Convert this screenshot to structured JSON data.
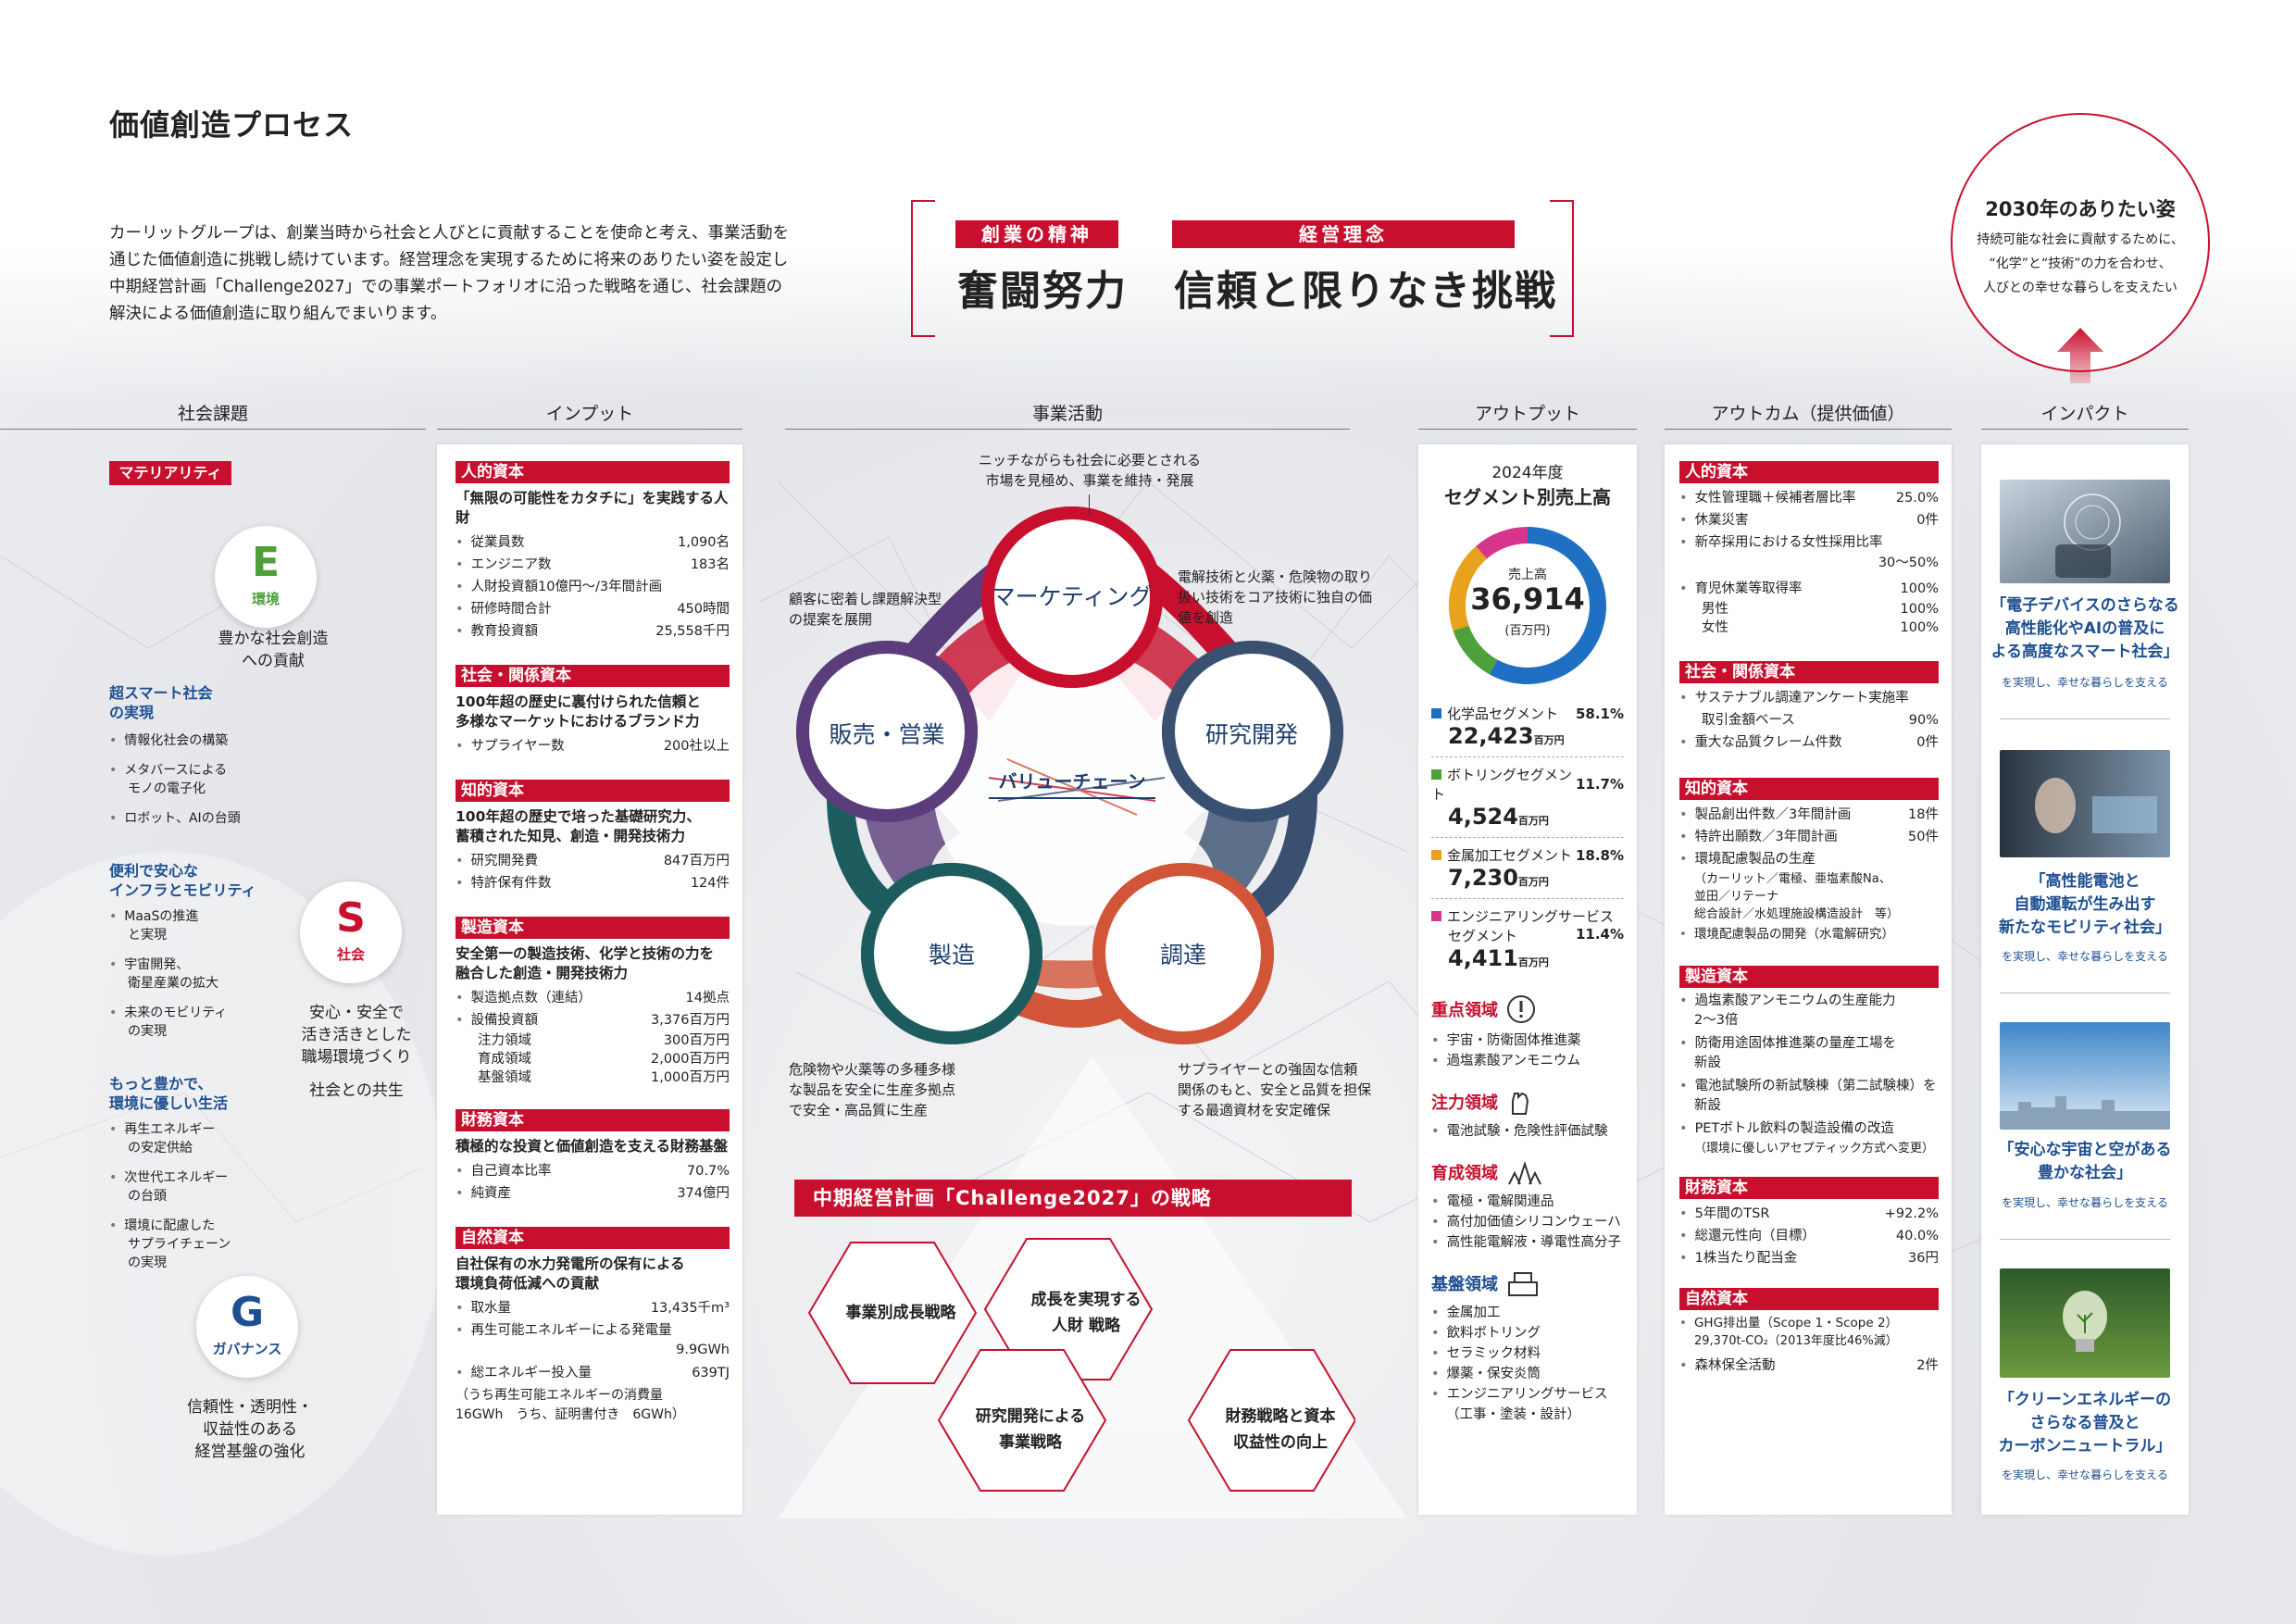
{
  "page": {
    "title": "価値創造プロセス",
    "intro": [
      "カーリットグループは、創業当時から社会と人びとに貢献することを使命と考え、事業活動を",
      "通じた価値創造に挑戦し続けています。経営理念を実現するために将来のありたい姿を設定し",
      "中期経営計画「Challenge2027」での事業ポートフォリオに沿った戦略を通じ、社会課題の",
      "解決による価値創造に取り組んでまいります。"
    ]
  },
  "motto": {
    "spirit_label": "創業の精神",
    "spirit_text": "奮闘努力",
    "philosophy_label": "経営理念",
    "philosophy_text": "信頼と限りなき挑戦"
  },
  "vision": {
    "title": "2030年のありたい姿",
    "lines": [
      "持続可能な社会に貢献するために、",
      "“化学”と“技術”の力を合わせ、",
      "人びとの幸せな暮らしを支えたい"
    ]
  },
  "columns": {
    "social": "社会課題",
    "input": "インプット",
    "business": "事業活動",
    "output": "アウトプット",
    "outcome": "アウトカム（提供価値）",
    "impact": "インパクト"
  },
  "materiality": {
    "label": "マテリアリティ",
    "e": {
      "letter": "E",
      "name": "環境",
      "desc": [
        "豊かな社会創造",
        "への貢献"
      ]
    },
    "s": {
      "letter": "S",
      "name": "社会",
      "desc": [
        "安心・安全で",
        "活き活きとした",
        "職場環境づくり"
      ],
      "desc2": "社会との共生"
    },
    "g": {
      "letter": "G",
      "name": "ガバナンス",
      "desc": [
        "信頼性・透明性・",
        "収益性のある",
        "経営基盤の強化"
      ]
    },
    "groups": [
      {
        "title": [
          "超スマート社会",
          "の実現"
        ],
        "items": [
          [
            "情報化社会の構築"
          ],
          [
            "メタバースによる",
            "モノの電子化"
          ],
          [
            "ロボット、AIの台頭"
          ]
        ]
      },
      {
        "title": [
          "便利で安心な",
          "インフラとモビリティ"
        ],
        "items": [
          [
            "MaaSの推進",
            "と実現"
          ],
          [
            "宇宙開発、",
            "衛星産業の拡大"
          ],
          [
            "未来のモビリティ",
            "の実現"
          ]
        ]
      },
      {
        "title": [
          "もっと豊かで、",
          "環境に優しい生活"
        ],
        "items": [
          [
            "再生エネルギー",
            "の安定供給"
          ],
          [
            "次世代エネルギー",
            "の台頭"
          ],
          [
            "環境に配慮した",
            "サプライチェーン",
            "の実現"
          ]
        ]
      }
    ]
  },
  "input": {
    "human": {
      "head": "人的資本",
      "sub": "「無限の可能性をカタチに」を実践する人財",
      "rows": [
        [
          "従業員数",
          "1,090名"
        ],
        [
          "エンジニア数",
          "183名"
        ],
        [
          "人財投資額10億円～/3年間計画",
          ""
        ],
        [
          "研修時間合計",
          "450時間"
        ],
        [
          "教育投資額",
          "25,558千円"
        ]
      ]
    },
    "social": {
      "head": "社会・関係資本",
      "sub": [
        "100年超の歴史に裏付けられた信頼と",
        "多様なマーケットにおけるブランド力"
      ],
      "rows": [
        [
          "サプライヤー数",
          "200社以上"
        ]
      ]
    },
    "intellectual": {
      "head": "知的資本",
      "sub": [
        "100年超の歴史で培った基礎研究力、",
        "蓄積された知見、創造・開発技術力"
      ],
      "rows": [
        [
          "研究開発費",
          "847百万円"
        ],
        [
          "特許保有件数",
          "124件"
        ]
      ]
    },
    "manufactured": {
      "head": "製造資本",
      "sub": [
        "安全第一の製造技術、化学と技術の力を",
        "融合した創造・開発技術力"
      ],
      "rows": [
        [
          "製造拠点数（連結）",
          "14拠点"
        ],
        [
          "設備投資額",
          "3,376百万円"
        ]
      ],
      "subrows": [
        [
          "注力領域",
          "300百万円"
        ],
        [
          "育成領域",
          "2,000百万円"
        ],
        [
          "基盤領域",
          "1,000百万円"
        ]
      ]
    },
    "financial": {
      "head": "財務資本",
      "sub": "積極的な投資と価値創造を支える財務基盤",
      "rows": [
        [
          "自己資本比率",
          "70.7%"
        ],
        [
          "純資産",
          "374億円"
        ]
      ]
    },
    "natural": {
      "head": "自然資本",
      "sub": [
        "自社保有の水力発電所の保有による",
        "環境負荷低減への貢献"
      ],
      "rows": [
        [
          "取水量",
          "13,435千m³"
        ],
        [
          "再生可能エネルギーによる発電量",
          ""
        ]
      ],
      "row2_val": "9.9GWh",
      "rows2": [
        [
          "総エネルギー投入量",
          "639TJ"
        ]
      ],
      "note": [
        "（うち再生可能エネルギーの消費量",
        "16GWh　うち、証明書付き　6GWh）"
      ]
    }
  },
  "value_chain": {
    "center": "バリューチェーン",
    "nodes": {
      "marketing": "マーケティング",
      "rnd": "研究開発",
      "procurement": "調達",
      "manufacturing": "製造",
      "sales": "販売・営業"
    },
    "callouts": {
      "marketing": [
        "ニッチながらも社会に必要とされる",
        "市場を見極め、事業を維持・発展"
      ],
      "rnd": [
        "電解技術と火薬・危険物の取り",
        "扱い技術をコア技術に独自の価",
        "値を創造"
      ],
      "procurement": [
        "サプライヤーとの強固な信頼",
        "関係のもと、安全と品質を担保",
        "する最適資材を安定確保"
      ],
      "manufacturing": [
        "危険物や火薬等の多種多様",
        "な製品を安全に生産多拠点",
        "で安全・高品質に生産"
      ],
      "sales": [
        "顧客に密着し課題解決型",
        "の提案を展開"
      ]
    },
    "colors": {
      "marketing": "#c8102e",
      "rnd": "#3a5070",
      "procurement": "#d2553a",
      "manufacturing": "#1d5c5e",
      "sales": "#5a3d7a"
    }
  },
  "strategy": {
    "title": "中期経営計画「Challenge2027」の戦略",
    "hex": [
      [
        "事業別成長戦略"
      ],
      [
        "成長を実現する",
        "人財 戦略"
      ],
      [
        "研究開発による",
        "事業戦略"
      ],
      [
        "財務戦略と資本",
        "収益性の向上"
      ]
    ]
  },
  "output": {
    "year": "2024年度",
    "title": "セグメント別売上高",
    "donut_label": "売上高",
    "donut_value": "36,914",
    "donut_unit": "(百万円)",
    "unit": "百万円",
    "segments": [
      {
        "name": "化学品セグメント",
        "pct": "58.1%",
        "value": "22,423",
        "color": "#1f6fc2"
      },
      {
        "name": "ボトリングセグメント",
        "pct": "11.7%",
        "value": "4,524",
        "color": "#4ea13a"
      },
      {
        "name": "金属加工セグメント",
        "pct": "18.8%",
        "value": "7,230",
        "color": "#e8a21b"
      },
      {
        "name": "エンジニアリングサービスセグメント",
        "name_lines": [
          "エンジニアリングサービス",
          "セグメント"
        ],
        "pct": "11.4%",
        "value": "4,411",
        "color": "#d6358b"
      }
    ],
    "focus": [
      {
        "head": "重点領域",
        "icon": "exclamation-icon",
        "items": [
          [
            "宇宙・防衛固体推進薬"
          ],
          [
            "過塩素酸アンモニウム"
          ]
        ]
      },
      {
        "head": "注力領域",
        "icon": "fist-icon",
        "items": [
          [
            "電池試験・危険性評価試験"
          ]
        ]
      },
      {
        "head": "育成領域",
        "icon": "sprout-icon",
        "items": [
          [
            "電極・電解関連品"
          ],
          [
            "高付加価値シリコンウェーハ"
          ],
          [
            "高性能電解液・導電性高分子"
          ]
        ]
      },
      {
        "head": "基盤領域",
        "icon": "boxes-icon",
        "items": [
          [
            "金属加工"
          ],
          [
            "飲料ボトリング"
          ],
          [
            "セラミック材料"
          ],
          [
            "爆薬・保安炎筒"
          ],
          [
            "エンジニアリングサービス",
            "（工事・塗装・設計）"
          ]
        ]
      }
    ]
  },
  "outcome": {
    "human": {
      "head": "人的資本",
      "rows": [
        [
          "女性管理職＋候補者層比率",
          "25.0%"
        ],
        [
          "休業災害",
          "0件"
        ],
        [
          "新卒採用における女性採用比率",
          ""
        ]
      ],
      "range": "30～50%",
      "rows2": [
        [
          "育児休業等取得率",
          "100%"
        ]
      ],
      "subrows": [
        [
          "男性",
          "100%"
        ],
        [
          "女性",
          "100%"
        ]
      ]
    },
    "social": {
      "head": "社会・関係資本",
      "rows": [
        [
          "サステナブル調達アンケート実施率",
          ""
        ]
      ],
      "subrows": [
        [
          "取引金額ベース",
          "90%"
        ]
      ],
      "rows2": [
        [
          "重大な品質クレーム件数",
          "0件"
        ]
      ]
    },
    "intellectual": {
      "head": "知的資本",
      "rows": [
        [
          "製品創出件数／3年間計画",
          "18件"
        ],
        [
          "特許出願数／3年間計画",
          "50件"
        ],
        [
          "環境配慮製品の生産",
          ""
        ]
      ],
      "note": [
        "（カーリット／電極、亜塩素酸Na、",
        "並田／リテーナ",
        "総合設計／水処理施設構造設計　等）"
      ],
      "rows2": [
        [
          "環境配慮製品の開発（水電解研究）",
          ""
        ]
      ]
    },
    "manufactured": {
      "head": "製造資本",
      "items": [
        [
          "過塩素酸アンモニウムの生産能力",
          "2～3倍"
        ],
        [
          "防衛用途固体推進薬の量産工場を",
          "新設"
        ],
        [
          "電池試験所の新試験棟（第二試験棟）を",
          "新設"
        ],
        [
          "PETボトル飲料の製造設備の改造",
          "（環境に優しいアセプティック方式へ変更）"
        ]
      ]
    },
    "financial": {
      "head": "財務資本",
      "rows": [
        [
          "5年間のTSR",
          "+92.2%"
        ],
        [
          "総還元性向（目標）",
          "40.0%"
        ],
        [
          "1株当たり配当金",
          "36円"
        ]
      ]
    },
    "natural": {
      "head": "自然資本",
      "items": [
        [
          "GHG排出量（Scope 1・Scope 2）",
          "29,370t-CO₂（2013年度比46%減）"
        ]
      ],
      "rows": [
        [
          "森林保全活動",
          "2件"
        ]
      ]
    }
  },
  "impact": [
    {
      "caption": [
        "「電子デバイスのさらなる",
        "高性能化やAIの普及に",
        "よる高度なスマート社会」"
      ],
      "sub": "を実現し、幸せな暮らしを支える",
      "icon": "smart-society-photo"
    },
    {
      "caption": [
        "「高性能電池と",
        "自動運転が生み出す",
        "新たなモビリティ社会」"
      ],
      "sub": "を実現し、幸せな暮らしを支える",
      "icon": "autonomous-car-photo"
    },
    {
      "caption": [
        "「安心な宇宙と空がある",
        "豊かな社会」"
      ],
      "sub": "を実現し、幸せな暮らしを支える",
      "icon": "city-sky-photo"
    },
    {
      "caption": [
        "「クリーンエネルギーの",
        "さらなる普及と",
        "カーボンニュートラル」"
      ],
      "sub": "を実現し、幸せな暮らしを支える",
      "icon": "lightbulb-plant-photo"
    }
  ]
}
